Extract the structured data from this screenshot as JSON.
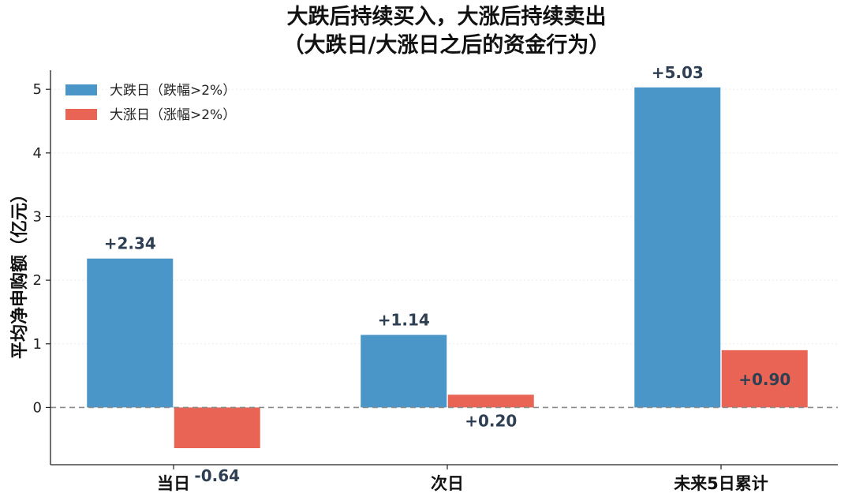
{
  "chart_data": {
    "type": "bar",
    "title": "大跌后持续买入，大涨后持续卖出",
    "subtitle": "（大跌日/大涨日之后的资金行为）",
    "ylabel": "平均净申购额（亿元）",
    "xlabel": "",
    "categories": [
      "当日",
      "次日",
      "未来5日累计"
    ],
    "series": [
      {
        "name": "大跌日（跌幅>2%）",
        "color": "#4a96c9",
        "values": [
          2.34,
          1.14,
          5.03
        ],
        "labels": [
          "+2.34",
          "+1.14",
          "+5.03"
        ]
      },
      {
        "name": "大涨日（涨幅>2%）",
        "color": "#e96454",
        "values": [
          -0.64,
          0.2,
          0.9
        ],
        "labels": [
          "-0.64",
          "+0.20",
          "+0.90"
        ]
      }
    ],
    "ylim": [
      -0.9,
      5.3
    ],
    "yticks": [
      0,
      1,
      2,
      3,
      4,
      5
    ],
    "grid": true,
    "zero_line": "dashed",
    "legend_position": "top-left"
  }
}
